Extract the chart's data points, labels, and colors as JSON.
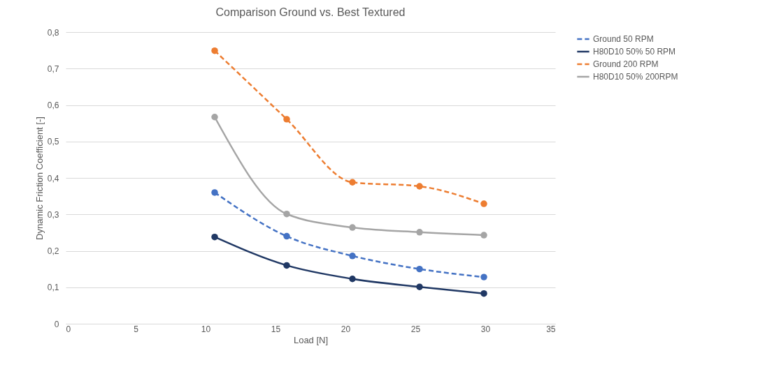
{
  "chart_data": {
    "type": "line",
    "title": "Comparison Ground vs. Best Textured",
    "xlabel": "Load [N]",
    "ylabel": "Dynamic Friction Coefficient [-]",
    "x": [
      10.65,
      15.8,
      20.5,
      25.3,
      29.9
    ],
    "series": [
      {
        "name": "Ground 50 RPM",
        "color": "#4472c4",
        "line_style": "dashed",
        "values": [
          0.36,
          0.24,
          0.186,
          0.15,
          0.128
        ]
      },
      {
        "name": "H80D10 50% 50 RPM",
        "color": "#203864",
        "line_style": "solid",
        "values": [
          0.238,
          0.16,
          0.123,
          0.101,
          0.083
        ]
      },
      {
        "name": "Ground 200 RPM",
        "color": "#ed7d31",
        "line_style": "dashed",
        "values": [
          0.749,
          0.561,
          0.388,
          0.377,
          0.329
        ]
      },
      {
        "name": "H80D10 50% 200RPM",
        "color": "#a5a5a5",
        "line_style": "solid",
        "values": [
          0.567,
          0.301,
          0.264,
          0.251,
          0.243
        ]
      }
    ],
    "xlim": [
      0,
      35
    ],
    "xticks": [
      0,
      5,
      10,
      15,
      20,
      25,
      30,
      35
    ],
    "ylim": [
      0,
      0.8
    ],
    "yticks": [
      {
        "value": 0,
        "label": "0"
      },
      {
        "value": 0.1,
        "label": "0,1"
      },
      {
        "value": 0.2,
        "label": "0,2"
      },
      {
        "value": 0.3,
        "label": "0,3"
      },
      {
        "value": 0.4,
        "label": "0,4"
      },
      {
        "value": 0.5,
        "label": "0,5"
      },
      {
        "value": 0.6,
        "label": "0,6"
      },
      {
        "value": 0.7,
        "label": "0,7"
      },
      {
        "value": 0.8,
        "label": "0,8"
      }
    ],
    "grid": "y",
    "legend": "right",
    "marker": "circle"
  }
}
